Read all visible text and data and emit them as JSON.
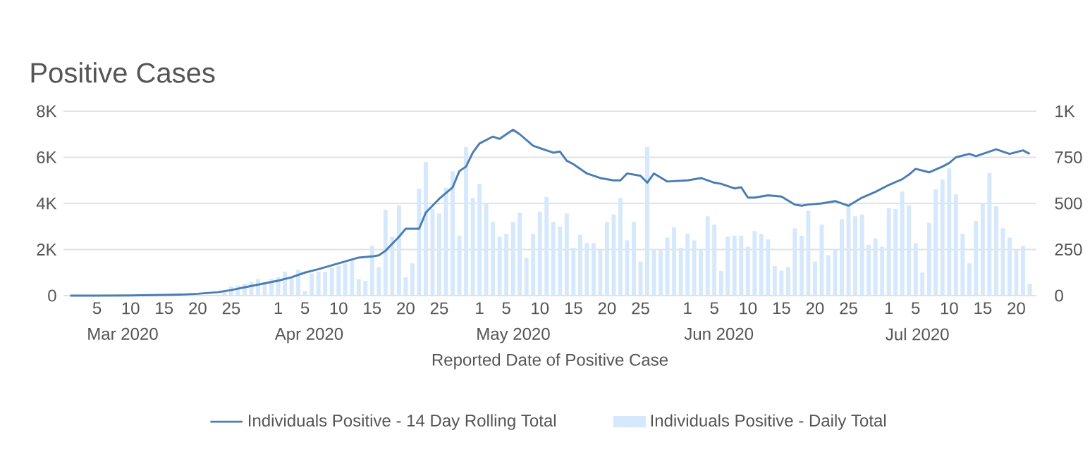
{
  "chart_data": {
    "type": "bar",
    "title": "Positive Cases",
    "xlabel": "Reported Date of Positive Case",
    "x": [
      "2020-03-01",
      "2020-03-02",
      "2020-03-03",
      "2020-03-04",
      "2020-03-05",
      "2020-03-06",
      "2020-03-07",
      "2020-03-08",
      "2020-03-09",
      "2020-03-10",
      "2020-03-11",
      "2020-03-12",
      "2020-03-13",
      "2020-03-14",
      "2020-03-15",
      "2020-03-16",
      "2020-03-17",
      "2020-03-18",
      "2020-03-19",
      "2020-03-20",
      "2020-03-21",
      "2020-03-22",
      "2020-03-23",
      "2020-03-24",
      "2020-03-25",
      "2020-03-26",
      "2020-03-27",
      "2020-03-28",
      "2020-03-29",
      "2020-03-30",
      "2020-03-31",
      "2020-04-01",
      "2020-04-02",
      "2020-04-03",
      "2020-04-04",
      "2020-04-05",
      "2020-04-06",
      "2020-04-07",
      "2020-04-08",
      "2020-04-09",
      "2020-04-10",
      "2020-04-11",
      "2020-04-12",
      "2020-04-13",
      "2020-04-14",
      "2020-04-15",
      "2020-04-16",
      "2020-04-17",
      "2020-04-18",
      "2020-04-19",
      "2020-04-20",
      "2020-04-21",
      "2020-04-22",
      "2020-04-23",
      "2020-04-24",
      "2020-04-25",
      "2020-04-26",
      "2020-04-27",
      "2020-04-28",
      "2020-04-29",
      "2020-04-30",
      "2020-05-01",
      "2020-05-02",
      "2020-05-03",
      "2020-05-04",
      "2020-05-05",
      "2020-05-06",
      "2020-05-07",
      "2020-05-08",
      "2020-05-09",
      "2020-05-10",
      "2020-05-11",
      "2020-05-12",
      "2020-05-13",
      "2020-05-14",
      "2020-05-15",
      "2020-05-16",
      "2020-05-17",
      "2020-05-18",
      "2020-05-19",
      "2020-05-20",
      "2020-05-21",
      "2020-05-22",
      "2020-05-23",
      "2020-05-24",
      "2020-05-25",
      "2020-05-26",
      "2020-05-27",
      "2020-05-28",
      "2020-05-29",
      "2020-05-30",
      "2020-05-31",
      "2020-06-01",
      "2020-06-02",
      "2020-06-03",
      "2020-06-04",
      "2020-06-05",
      "2020-06-06",
      "2020-06-07",
      "2020-06-08",
      "2020-06-09",
      "2020-06-10",
      "2020-06-11",
      "2020-06-12",
      "2020-06-13",
      "2020-06-14",
      "2020-06-15",
      "2020-06-16",
      "2020-06-17",
      "2020-06-18",
      "2020-06-19",
      "2020-06-20",
      "2020-06-21",
      "2020-06-22",
      "2020-06-23",
      "2020-06-24",
      "2020-06-25",
      "2020-06-26",
      "2020-06-27",
      "2020-06-28",
      "2020-06-29",
      "2020-06-30",
      "2020-07-01",
      "2020-07-02",
      "2020-07-03",
      "2020-07-04",
      "2020-07-05",
      "2020-07-06",
      "2020-07-07",
      "2020-07-08",
      "2020-07-09",
      "2020-07-10",
      "2020-07-11",
      "2020-07-12",
      "2020-07-13",
      "2020-07-14",
      "2020-07-15",
      "2020-07-16",
      "2020-07-17",
      "2020-07-18",
      "2020-07-19",
      "2020-07-20",
      "2020-07-21",
      "2020-07-22"
    ],
    "series": [
      {
        "name": "Individuals Positive - 14 Day Rolling Total",
        "type": "line",
        "color": "#4a7db3",
        "x": [
          "2020-03-01",
          "2020-03-05",
          "2020-03-10",
          "2020-03-15",
          "2020-03-18",
          "2020-03-20",
          "2020-03-23",
          "2020-03-25",
          "2020-03-28",
          "2020-04-01",
          "2020-04-03",
          "2020-04-05",
          "2020-04-07",
          "2020-04-10",
          "2020-04-13",
          "2020-04-15",
          "2020-04-16",
          "2020-04-17",
          "2020-04-18",
          "2020-04-19",
          "2020-04-20",
          "2020-04-22",
          "2020-04-23",
          "2020-04-25",
          "2020-04-27",
          "2020-04-28",
          "2020-04-29",
          "2020-04-30",
          "2020-05-01",
          "2020-05-03",
          "2020-05-04",
          "2020-05-06",
          "2020-05-07",
          "2020-05-09",
          "2020-05-11",
          "2020-05-12",
          "2020-05-13",
          "2020-05-14",
          "2020-05-15",
          "2020-05-17",
          "2020-05-19",
          "2020-05-21",
          "2020-05-22",
          "2020-05-23",
          "2020-05-25",
          "2020-05-26",
          "2020-05-27",
          "2020-05-29",
          "2020-06-01",
          "2020-06-03",
          "2020-06-05",
          "2020-06-06",
          "2020-06-08",
          "2020-06-09",
          "2020-06-10",
          "2020-06-11",
          "2020-06-13",
          "2020-06-15",
          "2020-06-17",
          "2020-06-18",
          "2020-06-19",
          "2020-06-21",
          "2020-06-23",
          "2020-06-25",
          "2020-06-27",
          "2020-06-29",
          "2020-07-01",
          "2020-07-03",
          "2020-07-04",
          "2020-07-05",
          "2020-07-07",
          "2020-07-09",
          "2020-07-10",
          "2020-07-11",
          "2020-07-13",
          "2020-07-14",
          "2020-07-15",
          "2020-07-17",
          "2020-07-19",
          "2020-07-21",
          "2020-07-22"
        ],
        "values": [
          0,
          0,
          10,
          30,
          50,
          80,
          150,
          240,
          420,
          650,
          800,
          1000,
          1150,
          1400,
          1650,
          1700,
          1750,
          1950,
          2250,
          2550,
          2900,
          2900,
          3600,
          4200,
          4700,
          5400,
          5600,
          6200,
          6600,
          6900,
          6800,
          7200,
          7000,
          6500,
          6300,
          6200,
          6250,
          5850,
          5700,
          5300,
          5100,
          5000,
          5000,
          5300,
          5200,
          4900,
          5300,
          4950,
          5000,
          5100,
          4900,
          4850,
          4650,
          4700,
          4250,
          4250,
          4350,
          4300,
          3950,
          3900,
          3950,
          4000,
          4100,
          3900,
          4250,
          4500,
          4800,
          5050,
          5250,
          5500,
          5350,
          5600,
          5750,
          6000,
          6150,
          6050,
          6150,
          6350,
          6150,
          6300,
          6150
        ]
      },
      {
        "name": "Individuals Positive - Daily Total",
        "axis": "y2",
        "color": "#d5e8fc",
        "values": [
          0,
          0,
          0,
          0,
          0,
          0,
          0,
          0,
          2,
          3,
          3,
          4,
          5,
          5,
          6,
          8,
          8,
          10,
          10,
          null,
          null,
          null,
          null,
          30,
          50,
          55,
          65,
          75,
          90,
          70,
          90,
          100,
          130,
          100,
          140,
          25,
          120,
          130,
          130,
          150,
          160,
          175,
          190,
          90,
          80,
          270,
          155,
          465,
          320,
          490,
          100,
          175,
          580,
          725,
          470,
          445,
          585,
          675,
          325,
          805,
          530,
          605,
          500,
          400,
          320,
          335,
          400,
          450,
          205,
          335,
          455,
          535,
          400,
          375,
          445,
          260,
          330,
          285,
          285,
          250,
          400,
          440,
          530,
          300,
          400,
          185,
          805,
          250,
          250,
          315,
          370,
          260,
          335,
          300,
          250,
          430,
          385,
          135,
          320,
          325,
          325,
          265,
          350,
          335,
          305,
          160,
          135,
          155,
          365,
          325,
          460,
          185,
          385,
          220,
          250,
          415,
          485,
          430,
          440,
          275,
          310,
          265,
          475,
          470,
          565,
          490,
          285,
          125,
          395,
          575,
          630,
          690,
          550,
          335,
          175,
          405,
          500,
          665,
          485,
          365,
          315,
          250,
          270,
          65
        ]
      }
    ],
    "xlim": [
      "2020-02-29",
      "2020-07-23"
    ],
    "xticks": [
      {
        "value": "2020-03-05",
        "label": "5"
      },
      {
        "value": "2020-03-10",
        "label": "10"
      },
      {
        "value": "2020-03-15",
        "label": "15"
      },
      {
        "value": "2020-03-20",
        "label": "20"
      },
      {
        "value": "2020-03-25",
        "label": "25"
      },
      {
        "value": "2020-04-01",
        "label": "1"
      },
      {
        "value": "2020-04-05",
        "label": "5"
      },
      {
        "value": "2020-04-10",
        "label": "10"
      },
      {
        "value": "2020-04-15",
        "label": "15"
      },
      {
        "value": "2020-04-20",
        "label": "20"
      },
      {
        "value": "2020-04-25",
        "label": "25"
      },
      {
        "value": "2020-05-01",
        "label": "1"
      },
      {
        "value": "2020-05-05",
        "label": "5"
      },
      {
        "value": "2020-05-10",
        "label": "10"
      },
      {
        "value": "2020-05-15",
        "label": "15"
      },
      {
        "value": "2020-05-20",
        "label": "20"
      },
      {
        "value": "2020-05-25",
        "label": "25"
      },
      {
        "value": "2020-06-01",
        "label": "1"
      },
      {
        "value": "2020-06-05",
        "label": "5"
      },
      {
        "value": "2020-06-10",
        "label": "10"
      },
      {
        "value": "2020-06-15",
        "label": "15"
      },
      {
        "value": "2020-06-20",
        "label": "20"
      },
      {
        "value": "2020-06-25",
        "label": "25"
      },
      {
        "value": "2020-07-01",
        "label": "1"
      },
      {
        "value": "2020-07-05",
        "label": "5"
      },
      {
        "value": "2020-07-10",
        "label": "10"
      },
      {
        "value": "2020-07-15",
        "label": "15"
      },
      {
        "value": "2020-07-20",
        "label": "20"
      }
    ],
    "ylim": [
      0,
      8000
    ],
    "yticks": [
      0,
      {
        "value": 2000,
        "label": "2K"
      },
      {
        "value": 4000,
        "label": "4K"
      },
      {
        "value": 6000,
        "label": "6K"
      },
      {
        "value": 8000,
        "label": "8K"
      }
    ],
    "y2lim": [
      0,
      1000
    ],
    "y2ticks": [
      0,
      250,
      500,
      750,
      {
        "value": 1000,
        "label": "1K"
      }
    ],
    "annotations": [
      "Mar 2020",
      "Apr 2020",
      "May 2020",
      "Jun 2020",
      "Jul 2020"
    ],
    "grid": "y",
    "legend": "bottom"
  }
}
